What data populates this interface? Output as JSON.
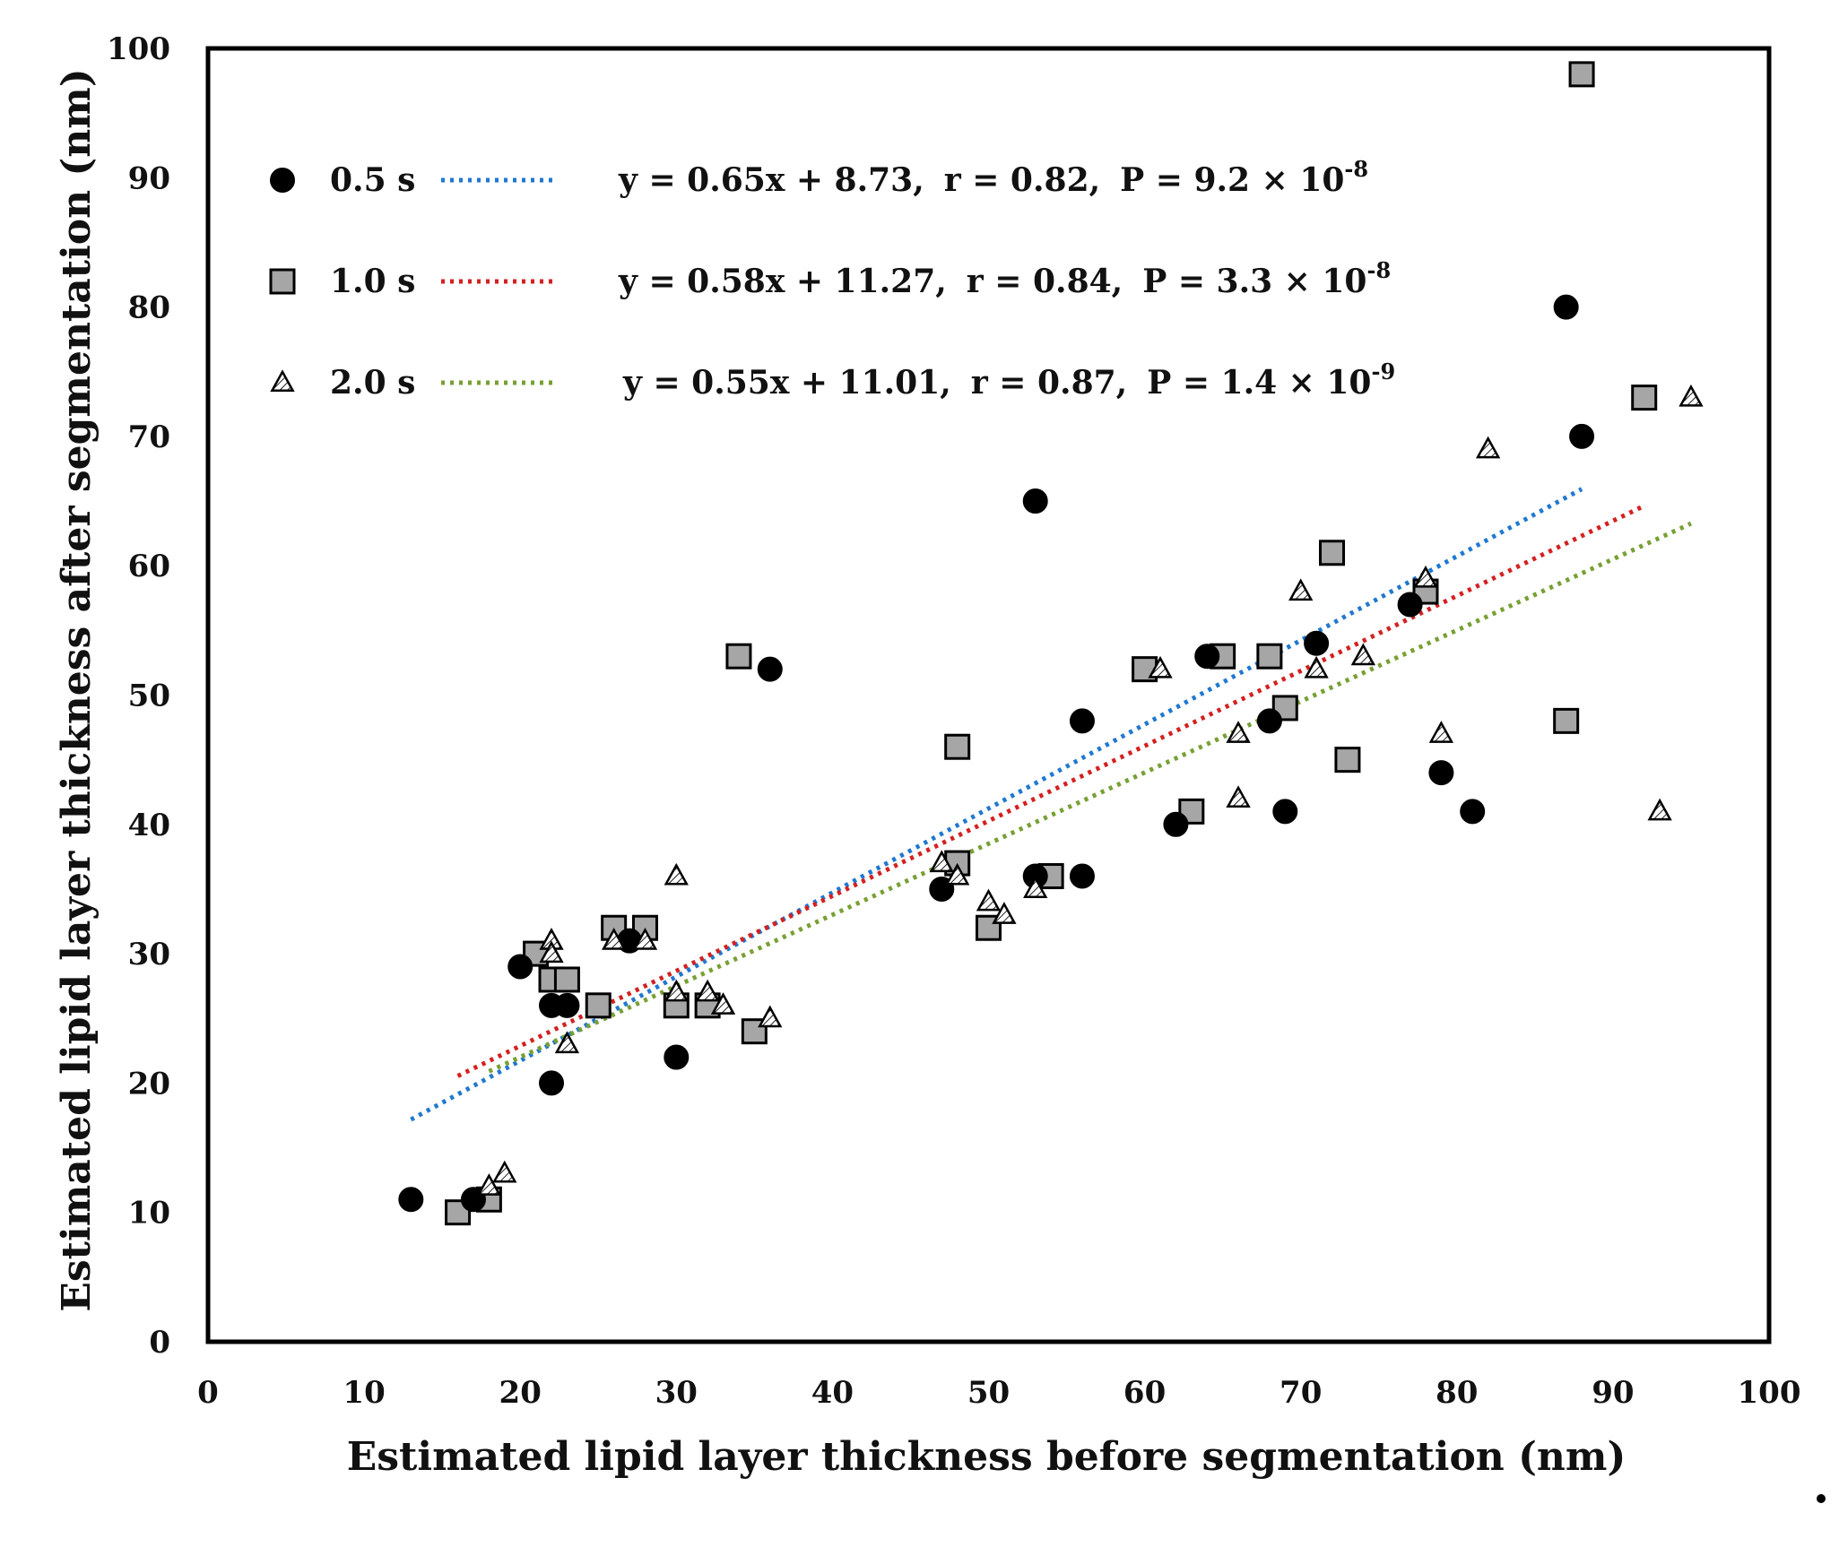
{
  "chart_data": {
    "type": "scatter",
    "title": "",
    "xlabel": "Estimated lipid layer thickness before segmentation (nm)",
    "ylabel": "Estimated lipid layer thickness after segmentation (nm)",
    "xlim": [
      0,
      100
    ],
    "ylim": [
      0,
      100
    ],
    "xticks": [
      0,
      10,
      20,
      30,
      40,
      50,
      60,
      70,
      80,
      90,
      100
    ],
    "yticks": [
      0,
      10,
      20,
      30,
      40,
      50,
      60,
      70,
      80,
      90,
      100
    ],
    "grid": false,
    "legend_position": "top-left",
    "series": [
      {
        "name": "0.5 s",
        "marker": "circle",
        "marker_color": "#000000",
        "trendline_color": "#1f78d1",
        "equation": {
          "lhs": "y = 0.65x + 8.73,",
          "r": "r = 0.82,",
          "p_prefix": "P = 9.2 × 10",
          "p_exp": "-8"
        },
        "fit": {
          "slope": 0.65,
          "intercept": 8.73,
          "x_range": [
            13,
            88
          ]
        },
        "points": [
          [
            13,
            11
          ],
          [
            17,
            11
          ],
          [
            20,
            29
          ],
          [
            22,
            26
          ],
          [
            22,
            20
          ],
          [
            23,
            26
          ],
          [
            27,
            31
          ],
          [
            30,
            22
          ],
          [
            36,
            52
          ],
          [
            47,
            35
          ],
          [
            53,
            65
          ],
          [
            53,
            36
          ],
          [
            56,
            36
          ],
          [
            56,
            48
          ],
          [
            62,
            40
          ],
          [
            64,
            53
          ],
          [
            68,
            48
          ],
          [
            69,
            41
          ],
          [
            71,
            54
          ],
          [
            77,
            57
          ],
          [
            79,
            44
          ],
          [
            81,
            41
          ],
          [
            87,
            80
          ],
          [
            88,
            70
          ]
        ]
      },
      {
        "name": "1.0 s",
        "marker": "square",
        "marker_color": "#a6a6a6",
        "trendline_color": "#d42020",
        "equation": {
          "lhs": "y = 0.58x + 11.27,",
          "r": "r = 0.84,",
          "p_prefix": "P = 3.3 × 10",
          "p_exp": "-8"
        },
        "fit": {
          "slope": 0.58,
          "intercept": 11.27,
          "x_range": [
            16,
            92
          ]
        },
        "points": [
          [
            16,
            10
          ],
          [
            18,
            11
          ],
          [
            21,
            30
          ],
          [
            22,
            28
          ],
          [
            23,
            28
          ],
          [
            25,
            26
          ],
          [
            26,
            32
          ],
          [
            28,
            32
          ],
          [
            30,
            26
          ],
          [
            32,
            26
          ],
          [
            34,
            53
          ],
          [
            35,
            24
          ],
          [
            48,
            46
          ],
          [
            48,
            37
          ],
          [
            50,
            32
          ],
          [
            54,
            36
          ],
          [
            60,
            52
          ],
          [
            63,
            41
          ],
          [
            65,
            53
          ],
          [
            68,
            53
          ],
          [
            69,
            49
          ],
          [
            72,
            61
          ],
          [
            73,
            45
          ],
          [
            78,
            58
          ],
          [
            87,
            48
          ],
          [
            88,
            98
          ],
          [
            92,
            73
          ]
        ]
      },
      {
        "name": "2.0 s",
        "marker": "triangle",
        "marker_color": "#ffffff",
        "trendline_color": "#77a033",
        "equation": {
          "lhs": "y = 0.55x + 11.01,",
          "r": "r = 0.87,",
          "p_prefix": "P = 1.4 × 10",
          "p_exp": "-9"
        },
        "fit": {
          "slope": 0.55,
          "intercept": 11.01,
          "x_range": [
            18,
            95
          ]
        },
        "points": [
          [
            18,
            12
          ],
          [
            19,
            13
          ],
          [
            22,
            31
          ],
          [
            22,
            30
          ],
          [
            23,
            23
          ],
          [
            26,
            31
          ],
          [
            28,
            31
          ],
          [
            30,
            36
          ],
          [
            30,
            27
          ],
          [
            32,
            27
          ],
          [
            33,
            26
          ],
          [
            36,
            25
          ],
          [
            47,
            37
          ],
          [
            48,
            36
          ],
          [
            50,
            34
          ],
          [
            51,
            33
          ],
          [
            53,
            35
          ],
          [
            61,
            52
          ],
          [
            66,
            47
          ],
          [
            66,
            42
          ],
          [
            70,
            58
          ],
          [
            71,
            52
          ],
          [
            74,
            53
          ],
          [
            78,
            59
          ],
          [
            79,
            47
          ],
          [
            82,
            69
          ],
          [
            93,
            41
          ],
          [
            95,
            73
          ]
        ]
      }
    ]
  }
}
